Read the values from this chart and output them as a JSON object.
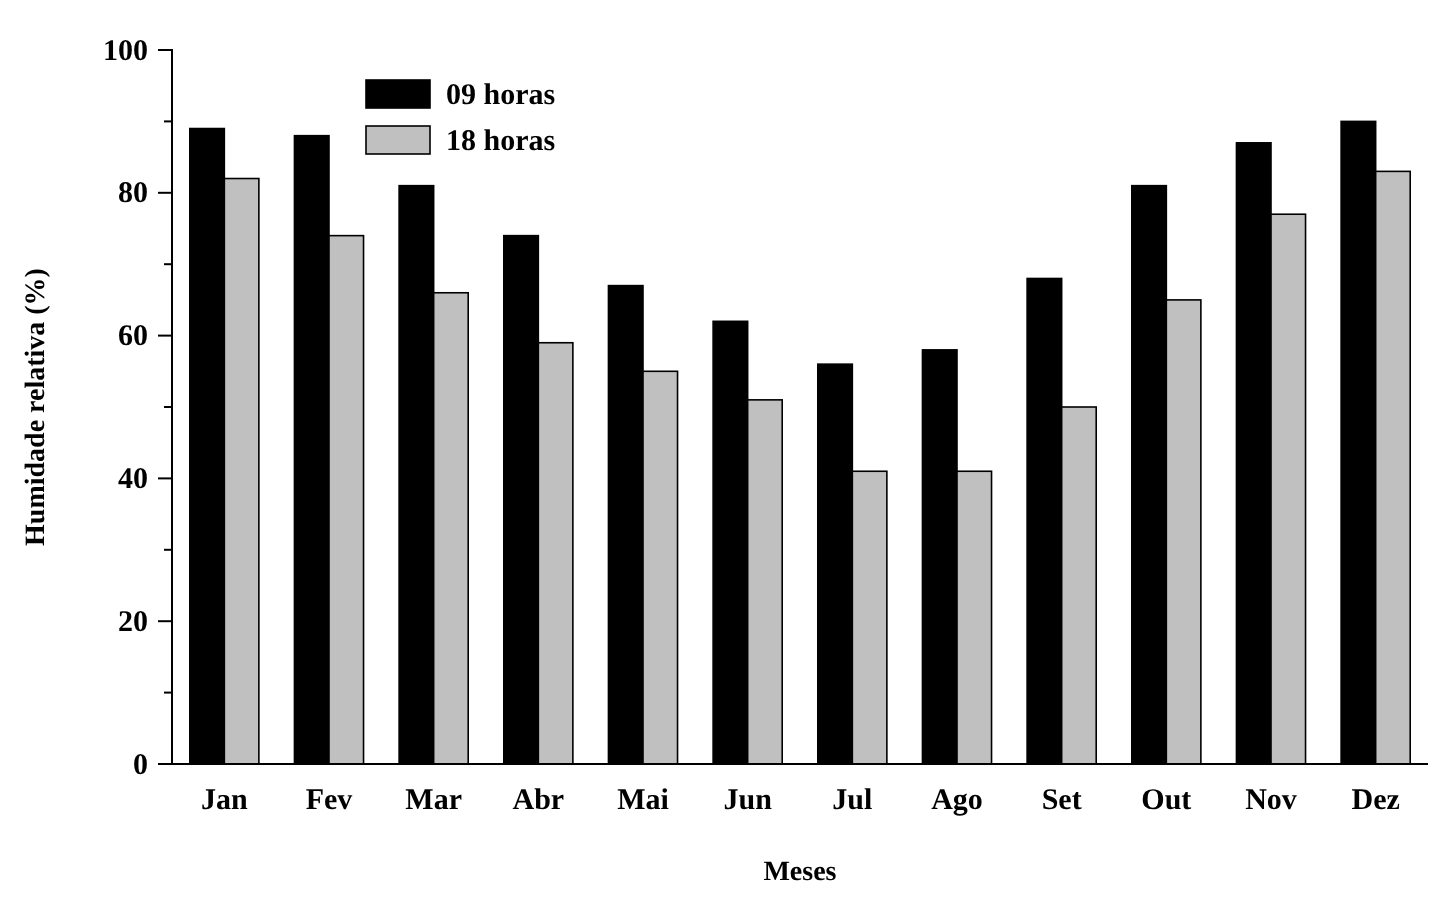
{
  "chart_data": {
    "type": "bar",
    "xlabel": "Meses",
    "ylabel": "Humidade relativa (%)",
    "categories": [
      "Jan",
      "Fev",
      "Mar",
      "Abr",
      "Mai",
      "Jun",
      "Jul",
      "Ago",
      "Set",
      "Out",
      "Nov",
      "Dez"
    ],
    "series": [
      {
        "name": "09 horas",
        "color": "#000000",
        "values": [
          89,
          88,
          81,
          74,
          67,
          62,
          56,
          58,
          68,
          81,
          87,
          90
        ]
      },
      {
        "name": "18 horas",
        "color": "#c0c0c0",
        "values": [
          82,
          74,
          66,
          59,
          55,
          51,
          41,
          41,
          50,
          65,
          77,
          83
        ]
      }
    ],
    "ylim": [
      0,
      100
    ],
    "yticks": [
      0,
      20,
      40,
      60,
      80,
      100
    ],
    "legend": "top left"
  }
}
